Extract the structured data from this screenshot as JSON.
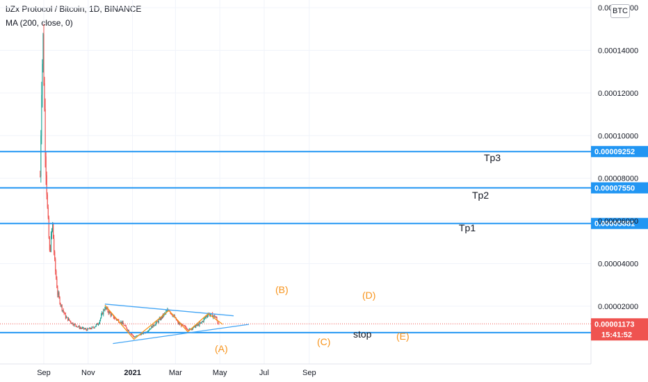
{
  "header": {
    "title": "bZx Protocol / Bitcoin, 1D, BINANCE",
    "indicator": "MA (200, close, 0)"
  },
  "currency_badge": "BTC",
  "colors": {
    "up": "#26a69a",
    "down": "#ef5350",
    "hline": "#2196f3",
    "trend": "#42a5f5",
    "wave": "#f7931a",
    "price": "#ef5350"
  },
  "chart_data": {
    "type": "candlestick",
    "title": "bZx Protocol / Bitcoin, 1D, BINANCE",
    "x_ticks": [
      "Sep",
      "Nov",
      "2021",
      "Mar",
      "May",
      "Jul",
      "Sep"
    ],
    "y_ticks": [
      "0.00002000",
      "0.00004000",
      "0.00006000",
      "0.00008000",
      "0.00010000",
      "0.00012000",
      "0.00014000",
      "0.00016000"
    ],
    "ylim": [
      2.5e-06,
      1.65e-05
    ],
    "price_series_approx": [
      {
        "date": "2020-08-27",
        "close": 8.1e-05
      },
      {
        "date": "2020-08-29",
        "close": 0.000125
      },
      {
        "date": "2020-08-31",
        "close": 0.000145
      },
      {
        "date": "2020-09-03",
        "close": 9.5e-05
      },
      {
        "date": "2020-09-06",
        "close": 6.5e-05
      },
      {
        "date": "2020-09-09",
        "close": 4.5e-05
      },
      {
        "date": "2020-09-13",
        "close": 5.8e-05
      },
      {
        "date": "2020-09-16",
        "close": 4e-05
      },
      {
        "date": "2020-09-20",
        "close": 2.6e-05
      },
      {
        "date": "2020-09-25",
        "close": 2e-05
      },
      {
        "date": "2020-10-01",
        "close": 1.5e-05
      },
      {
        "date": "2020-10-10",
        "close": 1.2e-05
      },
      {
        "date": "2020-10-20",
        "close": 1e-05
      },
      {
        "date": "2020-10-30",
        "close": 9e-06
      },
      {
        "date": "2020-11-08",
        "close": 1e-05
      },
      {
        "date": "2020-11-15",
        "close": 1.2e-05
      },
      {
        "date": "2020-11-24",
        "close": 1.95e-05
      },
      {
        "date": "2020-12-05",
        "close": 1.5e-05
      },
      {
        "date": "2020-12-18",
        "close": 1.2e-05
      },
      {
        "date": "2021-01-03",
        "close": 5.5e-06
      },
      {
        "date": "2021-01-20",
        "close": 8e-06
      },
      {
        "date": "2021-02-05",
        "close": 1.3e-05
      },
      {
        "date": "2021-02-20",
        "close": 1.85e-05
      },
      {
        "date": "2021-03-05",
        "close": 1.2e-05
      },
      {
        "date": "2021-03-20",
        "close": 9e-06
      },
      {
        "date": "2021-04-05",
        "close": 1.2e-05
      },
      {
        "date": "2021-04-15",
        "close": 1.65e-05
      },
      {
        "date": "2021-04-25",
        "close": 1.5e-05
      },
      {
        "date": "2021-04-29",
        "close": 1.17e-05
      }
    ],
    "horizontal_lines": [
      {
        "value": 9.252e-05,
        "label": "0.00009252",
        "name": "Tp3"
      },
      {
        "value": 7.55e-05,
        "label": "0.00007550",
        "name": "Tp2"
      },
      {
        "value": 5.881e-05,
        "label": "0.00005881",
        "name": "Tp1"
      },
      {
        "value": 7.64e-06,
        "label": "0.00000764",
        "name": "stop"
      }
    ],
    "current_price": {
      "label": "0.00001173",
      "countdown": "15:41:52"
    },
    "wave_labels": [
      "(A)",
      "(B)",
      "(C)",
      "(D)",
      "(E)"
    ],
    "trendlines": [
      {
        "from": {
          "date": "2020-11-24",
          "value": 2.1e-05
        },
        "to": {
          "date": "2021-05-20",
          "value": 1.55e-05
        }
      },
      {
        "from": {
          "date": "2020-12-05",
          "value": 2.5e-06
        },
        "to": {
          "date": "2021-06-10",
          "value": 1.15e-05
        }
      }
    ],
    "wave_path": [
      {
        "date": "2020-11-24",
        "value": 2.05e-05
      },
      {
        "date": "2021-01-03",
        "value": 4.5e-06
      },
      {
        "date": "2021-02-20",
        "value": 1.8e-05
      },
      {
        "date": "2021-03-18",
        "value": 8e-06
      },
      {
        "date": "2021-04-15",
        "value": 1.65e-05
      },
      {
        "date": "2021-05-05",
        "value": 1.15e-05
      }
    ]
  }
}
